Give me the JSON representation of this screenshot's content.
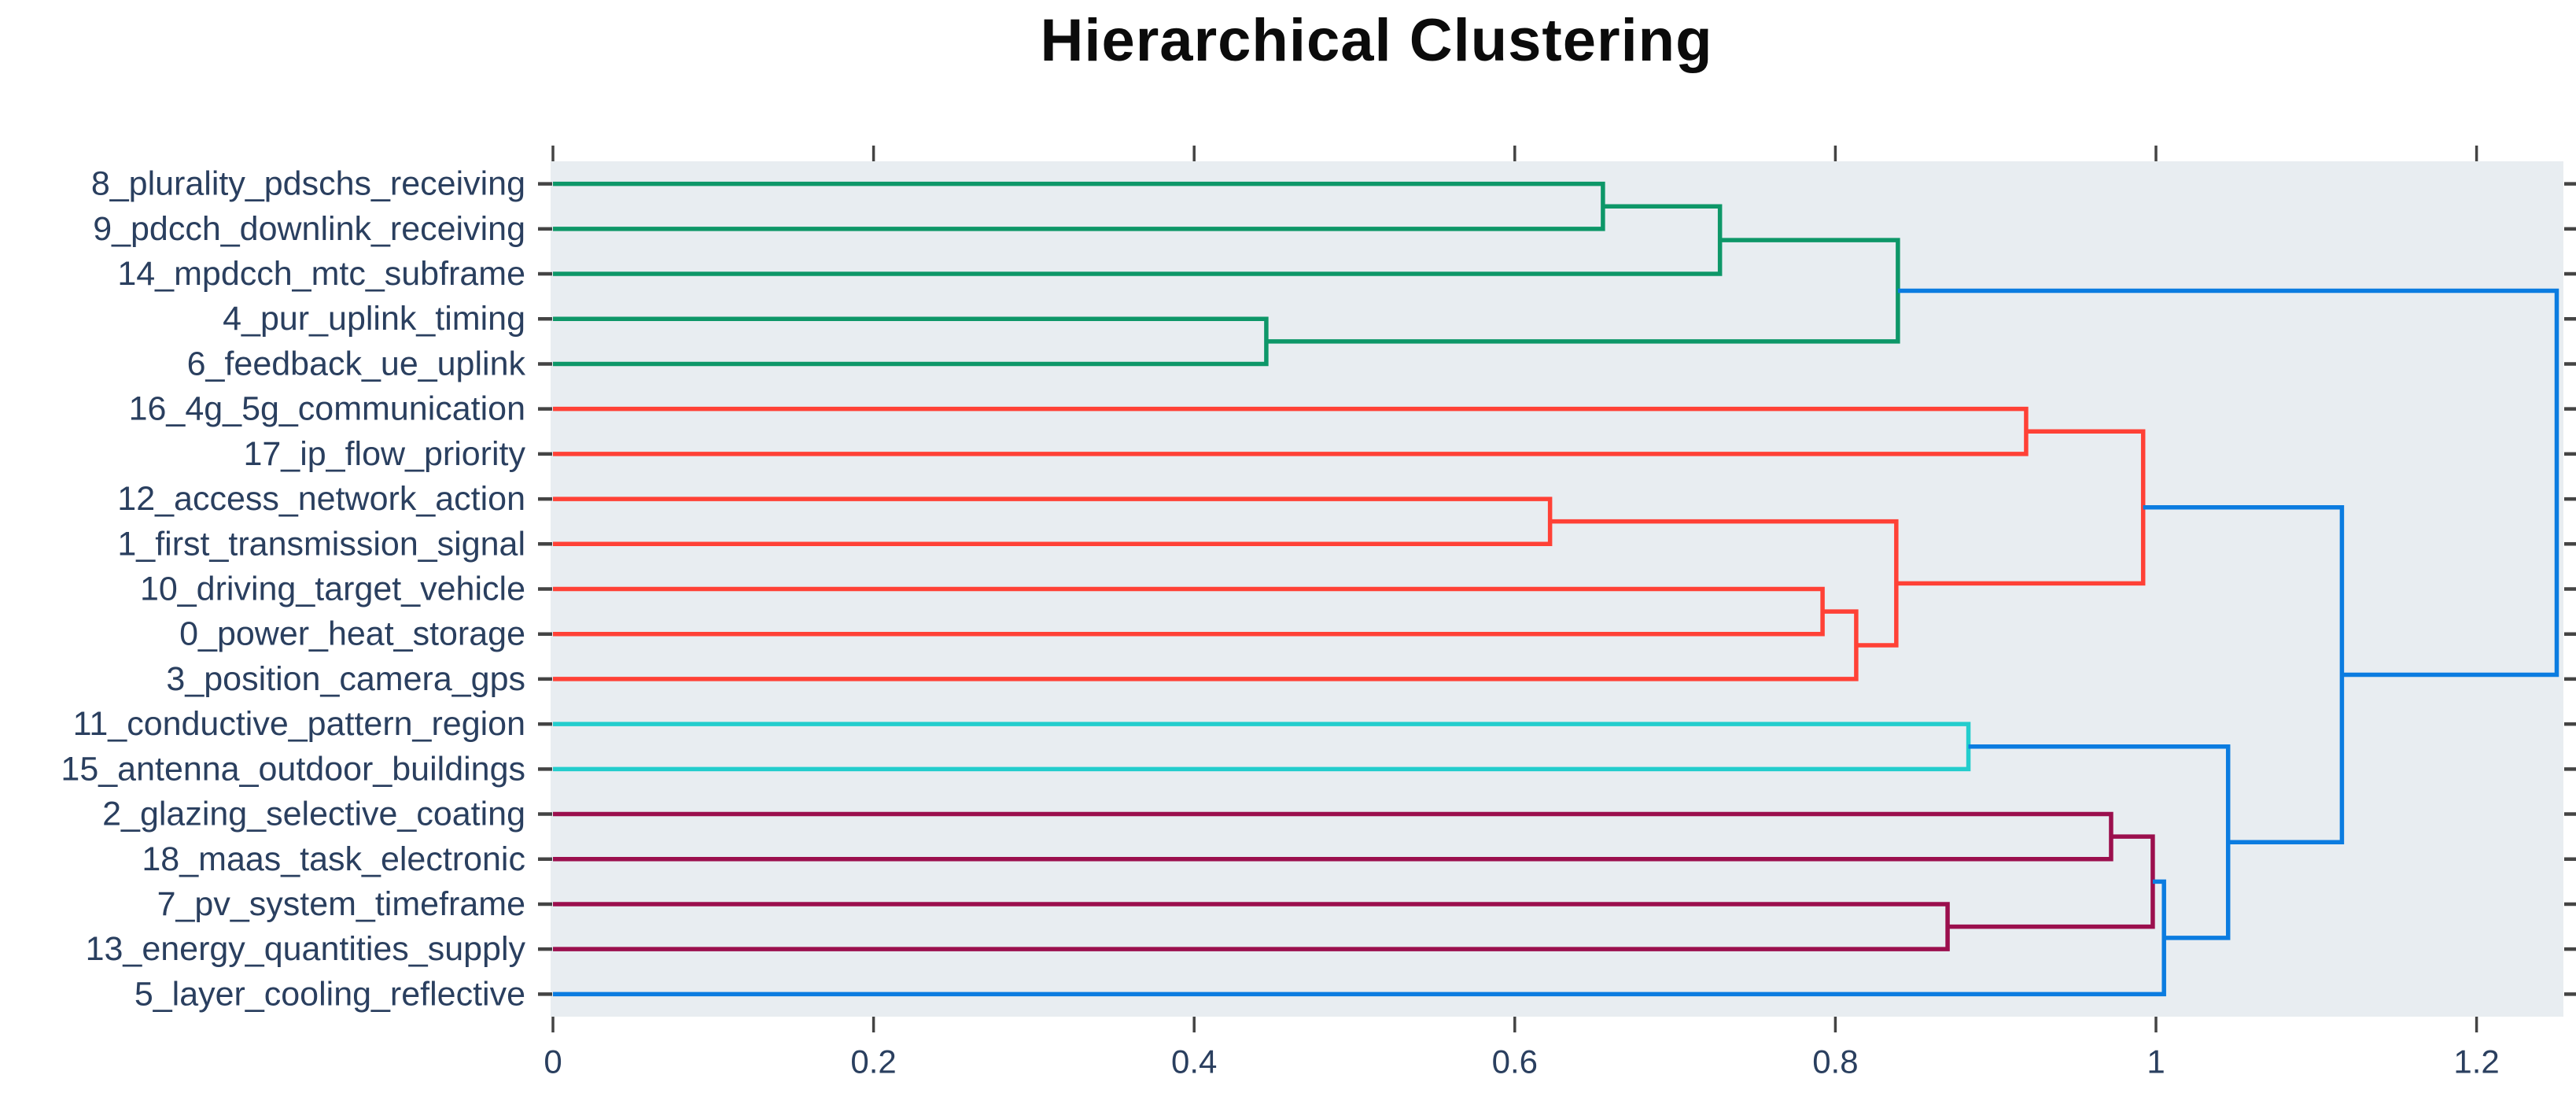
{
  "title": "Hierarchical Clustering",
  "chart_data": {
    "type": "dendrogram",
    "orientation": "horizontal",
    "title": "Hierarchical Clustering",
    "xlabel": "",
    "ylabel": "",
    "grid": false,
    "legend": false,
    "xlim": [
      0,
      1.254
    ],
    "x_ticks": {
      "values": [
        0,
        0.2,
        0.4,
        0.6,
        0.8,
        1,
        1.2
      ],
      "labels": [
        "0",
        "0.2",
        "0.4",
        "0.6",
        "0.8",
        "1",
        "1.2"
      ]
    },
    "colors": {
      "green": "#0d9768",
      "red": "#FF4136",
      "cyan": "#23CDCD",
      "maroon": "#9B0F4D",
      "blue": "#0b7ce0",
      "plot_background": "#E8EDF1",
      "label_text": "#2a3f5f",
      "tick_mark": "#444444",
      "title_text": "#0b0b0b"
    },
    "leaves": [
      {
        "label": "8_plurality_pdschs_receiving",
        "cluster": "green"
      },
      {
        "label": "9_pdcch_downlink_receiving",
        "cluster": "green"
      },
      {
        "label": "14_mpdcch_mtc_subframe",
        "cluster": "green"
      },
      {
        "label": "4_pur_uplink_timing",
        "cluster": "green"
      },
      {
        "label": "6_feedback_ue_uplink",
        "cluster": "green"
      },
      {
        "label": "16_4g_5g_communication",
        "cluster": "red"
      },
      {
        "label": "17_ip_flow_priority",
        "cluster": "red"
      },
      {
        "label": "12_access_network_action",
        "cluster": "red"
      },
      {
        "label": "1_first_transmission_signal",
        "cluster": "red"
      },
      {
        "label": "10_driving_target_vehicle",
        "cluster": "red"
      },
      {
        "label": "0_power_heat_storage",
        "cluster": "red"
      },
      {
        "label": "3_position_camera_gps",
        "cluster": "red"
      },
      {
        "label": "11_conductive_pattern_region",
        "cluster": "cyan"
      },
      {
        "label": "15_antenna_outdoor_buildings",
        "cluster": "cyan"
      },
      {
        "label": "2_glazing_selective_coating",
        "cluster": "maroon"
      },
      {
        "label": "18_maas_task_electronic",
        "cluster": "maroon"
      },
      {
        "label": "7_pv_system_timeframe",
        "cluster": "maroon"
      },
      {
        "label": "13_energy_quantities_supply",
        "cluster": "maroon"
      },
      {
        "label": "5_layer_cooling_reflective",
        "cluster": "blue"
      }
    ],
    "merges": [
      {
        "id": "m0",
        "children": [
          {
            "leaf": 0
          },
          {
            "leaf": 1
          }
        ],
        "distance": 0.655,
        "color": "green"
      },
      {
        "id": "m1",
        "children": [
          {
            "merge": 0
          },
          {
            "leaf": 2
          }
        ],
        "distance": 0.728,
        "color": "green"
      },
      {
        "id": "m2",
        "children": [
          {
            "leaf": 3
          },
          {
            "leaf": 4
          }
        ],
        "distance": 0.445,
        "color": "green"
      },
      {
        "id": "m3",
        "children": [
          {
            "merge": 1
          },
          {
            "merge": 2
          }
        ],
        "distance": 0.839,
        "color": "green"
      },
      {
        "id": "m4",
        "children": [
          {
            "leaf": 5
          },
          {
            "leaf": 6
          }
        ],
        "distance": 0.919,
        "color": "red"
      },
      {
        "id": "m5",
        "children": [
          {
            "leaf": 7
          },
          {
            "leaf": 8
          }
        ],
        "distance": 0.622,
        "color": "red"
      },
      {
        "id": "m6",
        "children": [
          {
            "leaf": 9
          },
          {
            "leaf": 10
          }
        ],
        "distance": 0.792,
        "color": "red"
      },
      {
        "id": "m7",
        "children": [
          {
            "merge": 6
          },
          {
            "leaf": 11
          }
        ],
        "distance": 0.813,
        "color": "red"
      },
      {
        "id": "m8",
        "children": [
          {
            "merge": 5
          },
          {
            "merge": 7
          }
        ],
        "distance": 0.838,
        "color": "red"
      },
      {
        "id": "m9",
        "children": [
          {
            "merge": 4
          },
          {
            "merge": 8
          }
        ],
        "distance": 0.992,
        "color": "red"
      },
      {
        "id": "m10",
        "children": [
          {
            "leaf": 12
          },
          {
            "leaf": 13
          }
        ],
        "distance": 0.883,
        "color": "cyan"
      },
      {
        "id": "m11",
        "children": [
          {
            "leaf": 14
          },
          {
            "leaf": 15
          }
        ],
        "distance": 0.972,
        "color": "maroon"
      },
      {
        "id": "m12",
        "children": [
          {
            "leaf": 16
          },
          {
            "leaf": 17
          }
        ],
        "distance": 0.87,
        "color": "maroon"
      },
      {
        "id": "m13",
        "children": [
          {
            "merge": 11
          },
          {
            "merge": 12
          }
        ],
        "distance": 0.998,
        "color": "maroon"
      },
      {
        "id": "m14",
        "children": [
          {
            "merge": 13
          },
          {
            "leaf": 18
          }
        ],
        "distance": 1.005,
        "color": "blue"
      },
      {
        "id": "m15",
        "children": [
          {
            "merge": 10
          },
          {
            "merge": 14
          }
        ],
        "distance": 1.045,
        "color": "blue"
      },
      {
        "id": "m16",
        "children": [
          {
            "merge": 9
          },
          {
            "merge": 15
          }
        ],
        "distance": 1.116,
        "color": "blue"
      },
      {
        "id": "m17",
        "children": [
          {
            "merge": 3
          },
          {
            "merge": 16
          }
        ],
        "distance": 1.25,
        "color": "blue"
      }
    ]
  }
}
